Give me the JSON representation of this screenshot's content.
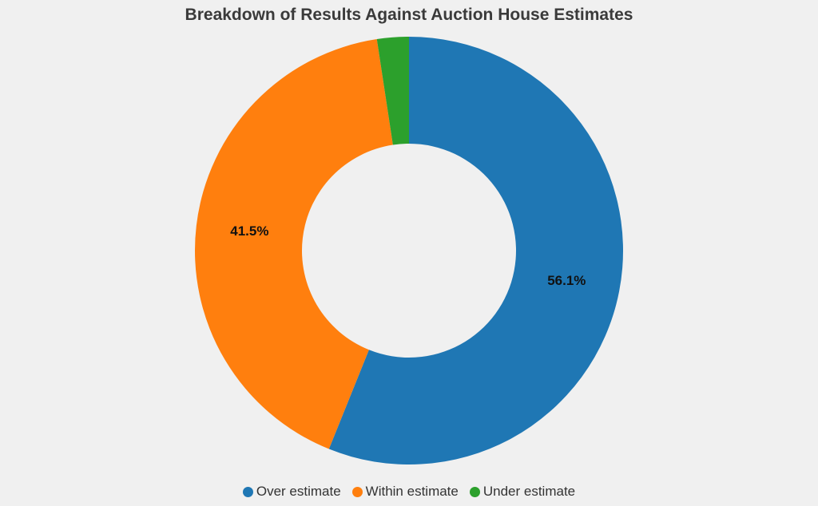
{
  "chart_data": {
    "type": "pie",
    "variant": "donut",
    "title": "Breakdown of Results Against Auction House Estimates",
    "categories": [
      "Over estimate",
      "Within estimate",
      "Under estimate"
    ],
    "values": [
      56.1,
      41.5,
      2.4
    ],
    "data_labels": [
      "56.1%",
      "41.5%",
      ""
    ],
    "colors": [
      "#1f77b4",
      "#ff7f0e",
      "#2ca02c"
    ],
    "legend_position": "bottom-center"
  },
  "background_color": "#f0f0f0"
}
